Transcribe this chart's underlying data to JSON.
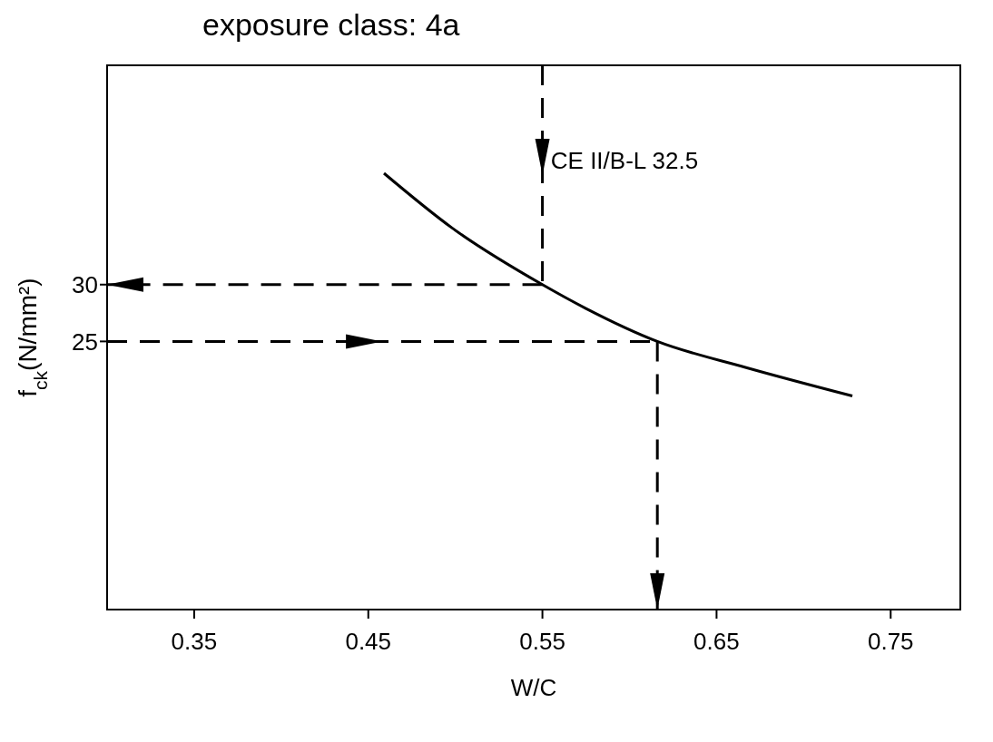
{
  "chart_data": {
    "type": "line",
    "title": "exposure class: 4a",
    "xlabel": "W/C",
    "ylabel": "f$_{ck}$(N/mm²)",
    "xlim": [
      0.3,
      0.79
    ],
    "ylim": [
      1.4,
      49.3
    ],
    "xticks": [
      0.35,
      0.45,
      0.55,
      0.65,
      0.75
    ],
    "yticks": [
      25,
      30
    ],
    "marker": "none",
    "annotations": [
      "CE II/B-L 32.5"
    ],
    "series": [
      {
        "color": "#000000",
        "line_style": "solid",
        "x": [
          0.459,
          0.498,
          0.55,
          0.575,
          0.616,
          0.667,
          0.728
        ],
        "values": [
          39.8,
          35,
          30,
          27.9,
          25,
          22.7,
          20.2
        ]
      },
      {
        "type": "line",
        "color": "#000000",
        "line_style": "dashed",
        "x": [
          0.55,
          0.55
        ],
        "values": [
          49.3,
          30
        ]
      },
      {
        "type": "line",
        "color": "#000000",
        "line_style": "dashed",
        "x": [
          0.55,
          0.3
        ],
        "values": [
          30,
          30
        ]
      },
      {
        "type": "line",
        "color": "#000000",
        "line_style": "dashed",
        "x": [
          0.3,
          0.616
        ],
        "values": [
          25,
          25
        ]
      },
      {
        "type": "line",
        "color": "#000000",
        "line_style": "dashed",
        "x": [
          0.616,
          0.616
        ],
        "values": [
          25,
          1.4
        ]
      }
    ]
  }
}
